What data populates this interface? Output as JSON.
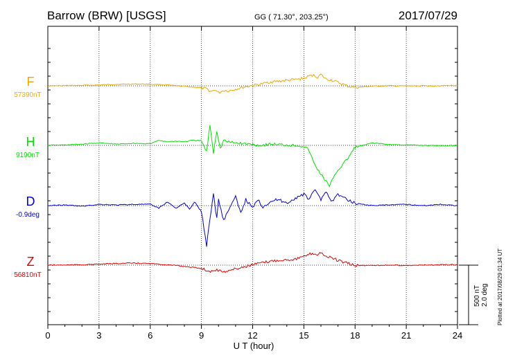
{
  "header": {
    "station": "Barrow (BRW)  [USGS]",
    "coords": "GG ( 71.30°, 203.25°)",
    "date": "2017/07/29"
  },
  "side_note": "Plotted at 2017/08/29 01:34 UT",
  "scale_bar": {
    "nt": "500 nT",
    "deg": "2.0 deg"
  },
  "chart_data": {
    "type": "line",
    "xlabel": "U T (hour)",
    "xlim": [
      0,
      24
    ],
    "x_ticks": [
      0,
      3,
      6,
      9,
      12,
      15,
      18,
      21,
      24
    ],
    "grid": true,
    "series": [
      {
        "name": "F",
        "baseline_label": "57390nT",
        "color": "#f0a800",
        "x": [
          0,
          1,
          2,
          3,
          4,
          5,
          6,
          7,
          7.5,
          8,
          8.5,
          9,
          9.3,
          9.6,
          9.8,
          10,
          10.3,
          10.6,
          11,
          11.5,
          12,
          12.5,
          13,
          13.5,
          14,
          14.5,
          15,
          15.5,
          15.8,
          16,
          16.3,
          16.6,
          17,
          17.5,
          18,
          19,
          20,
          21,
          22,
          23,
          24
        ],
        "y": [
          0,
          2,
          5,
          10,
          18,
          22,
          20,
          10,
          0,
          -5,
          -15,
          -25,
          -40,
          -70,
          -45,
          -85,
          -55,
          -60,
          -40,
          -15,
          5,
          20,
          45,
          55,
          65,
          75,
          90,
          130,
          105,
          135,
          80,
          70,
          40,
          0,
          -20,
          -5,
          0,
          -2,
          0,
          2,
          5
        ],
        "baseline_nt": 57390
      },
      {
        "name": "H",
        "baseline_label": "9190nT",
        "color": "#00e000",
        "x": [
          0,
          1,
          2,
          3,
          4,
          5,
          6,
          6.5,
          7,
          7.5,
          8,
          8.5,
          9,
          9.3,
          9.5,
          9.7,
          9.9,
          10.1,
          10.3,
          10.6,
          11,
          11.5,
          12,
          12.5,
          13,
          13.5,
          14,
          14.5,
          15,
          15.3,
          15.6,
          16,
          16.3,
          16.5,
          16.8,
          17.2,
          17.6,
          18,
          18.5,
          19,
          20,
          21,
          22,
          23,
          24
        ],
        "y": [
          0,
          5,
          15,
          30,
          15,
          25,
          20,
          60,
          45,
          50,
          45,
          60,
          55,
          -80,
          250,
          -90,
          180,
          -40,
          60,
          40,
          30,
          20,
          10,
          0,
          15,
          10,
          5,
          0,
          -10,
          -60,
          -220,
          -350,
          -430,
          -500,
          -350,
          -250,
          -150,
          -20,
          0,
          30,
          10,
          5,
          0,
          -5,
          0
        ],
        "baseline_nt": 9190
      },
      {
        "name": "D",
        "baseline_label": "-0.9deg",
        "color": "#0000e0",
        "x": [
          0,
          1,
          2,
          3,
          4,
          5,
          6,
          6.5,
          7,
          7.5,
          8,
          8.3,
          8.6,
          9,
          9.3,
          9.5,
          9.7,
          9.9,
          10,
          10.3,
          10.6,
          11,
          11.3,
          11.6,
          12,
          12.3,
          12.6,
          13,
          13.5,
          14,
          14.5,
          15,
          15.3,
          15.6,
          16,
          16.3,
          16.6,
          17,
          17.5,
          18,
          18.5,
          19,
          20,
          21,
          22,
          23,
          24
        ],
        "y": [
          0,
          0.05,
          -0.05,
          0.1,
          0.05,
          0.1,
          0.1,
          -0.2,
          0.3,
          -0.2,
          0.2,
          -0.3,
          0.3,
          -0.5,
          -3.2,
          -1.0,
          0.9,
          -1.0,
          0.5,
          -1.2,
          -0.3,
          0.7,
          -0.6,
          0.5,
          -0.2,
          0.5,
          -0.1,
          0.3,
          0.5,
          0.2,
          0.6,
          0.9,
          0.5,
          1.3,
          0.5,
          1.2,
          0.3,
          0.9,
          0.5,
          0.2,
          0.1,
          0,
          0.05,
          0.1,
          0,
          0.1,
          0
        ],
        "baseline_deg": -0.9
      },
      {
        "name": "Z",
        "baseline_label": "56810nT",
        "color": "#e00000",
        "x": [
          0,
          1,
          2,
          3,
          4,
          5,
          6,
          7,
          7.5,
          8,
          8.5,
          9,
          9.3,
          9.6,
          9.9,
          10.2,
          10.6,
          11,
          11.5,
          12,
          12.5,
          13,
          13.5,
          14,
          14.5,
          15,
          15.5,
          15.8,
          16,
          16.3,
          16.6,
          17,
          17.5,
          18,
          19,
          20,
          21,
          22,
          23,
          24
        ],
        "y": [
          0,
          2,
          5,
          12,
          20,
          25,
          18,
          5,
          -5,
          -15,
          -25,
          -40,
          -60,
          -75,
          -55,
          -80,
          -65,
          -45,
          -20,
          5,
          25,
          45,
          60,
          65,
          75,
          100,
          145,
          125,
          155,
          105,
          90,
          55,
          25,
          -5,
          -2,
          0,
          -3,
          0,
          3,
          5
        ],
        "baseline_nt": 56810
      }
    ]
  }
}
